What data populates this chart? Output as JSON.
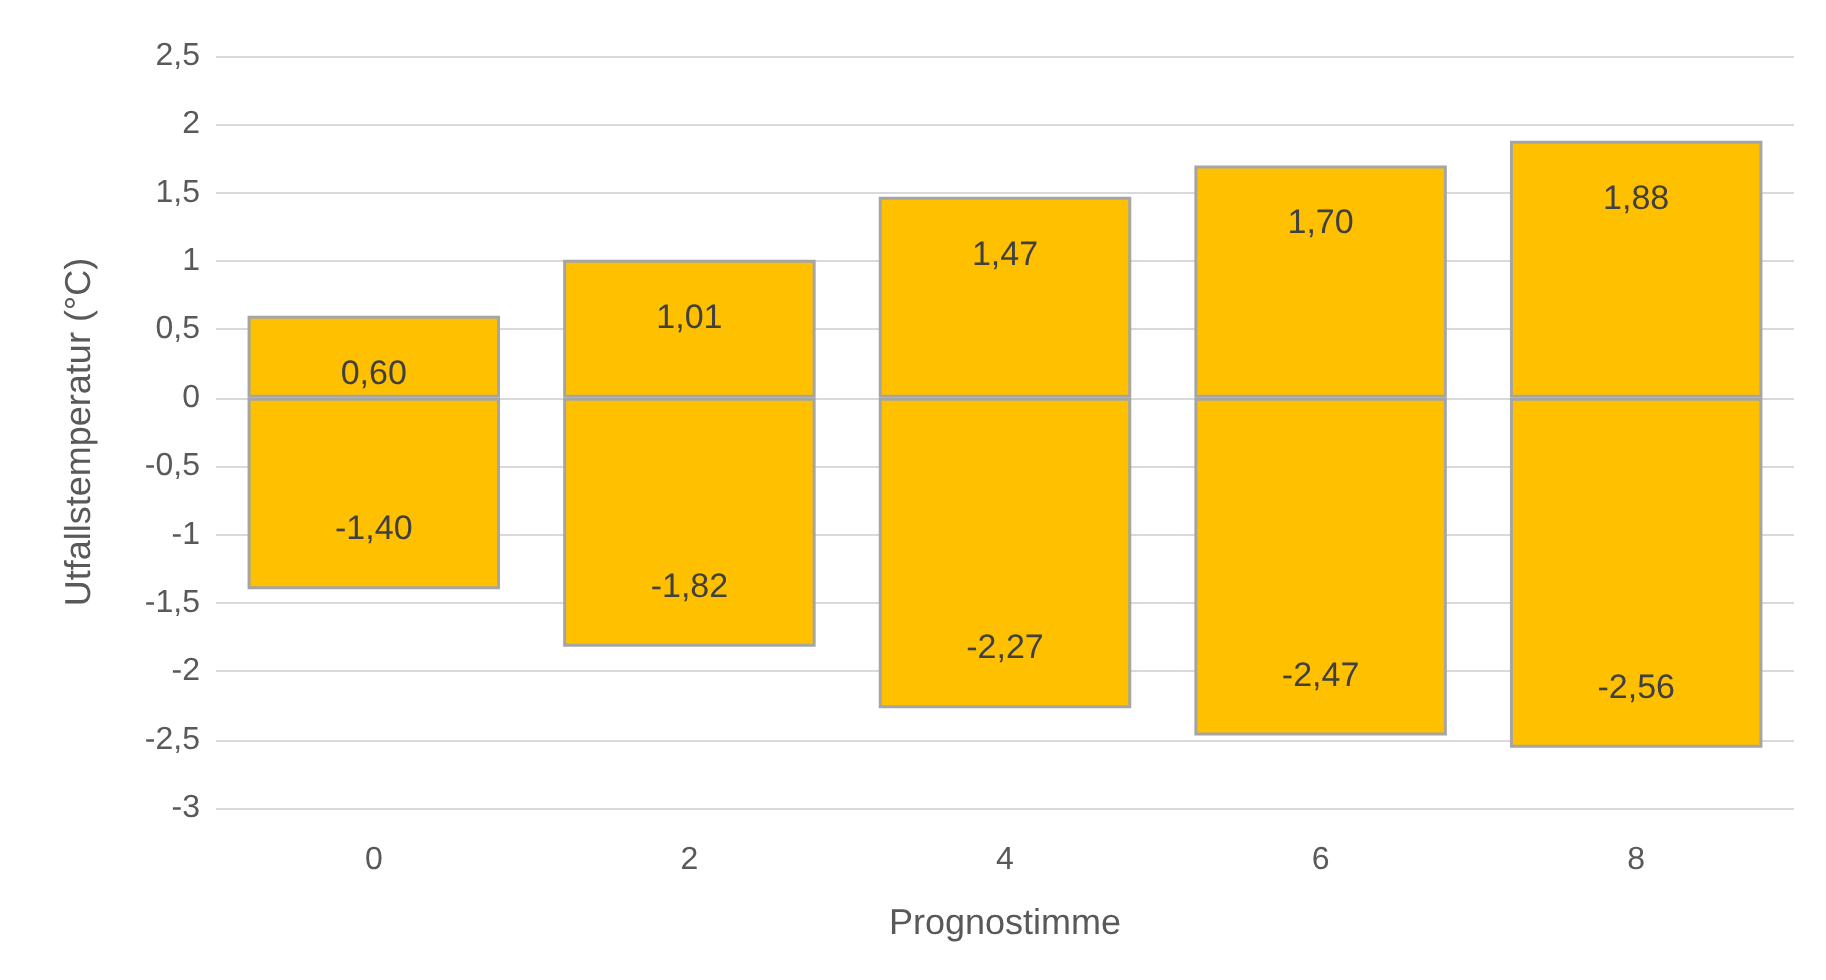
{
  "chart_data": {
    "type": "bar",
    "xlabel": "Prognostimme",
    "ylabel": "Utfallstemperatur (°C)",
    "categories": [
      "0",
      "2",
      "4",
      "6",
      "8"
    ],
    "stacked": true,
    "series": [
      {
        "color": "#ffc000",
        "values": [
          0.6,
          1.01,
          1.47,
          1.7,
          1.88
        ],
        "value_labels": [
          "0,60",
          "1,01",
          "1,47",
          "1,70",
          "1,88"
        ]
      },
      {
        "color": "#ffc000",
        "values": [
          -1.4,
          -1.82,
          -2.27,
          -2.47,
          -2.56
        ],
        "value_labels": [
          "-1,40",
          "-1,82",
          "-2,27",
          "-2,47",
          "-2,56"
        ]
      }
    ],
    "ylim": [
      -3,
      2.5
    ],
    "yticks": [
      -3,
      {
        "value": -2.5,
        "label": "-2,5"
      },
      -2,
      {
        "value": -1.5,
        "label": "-1,5"
      },
      -1,
      {
        "value": -0.5,
        "label": "-0,5"
      },
      0,
      {
        "value": 0.5,
        "label": "0,5"
      },
      1,
      {
        "value": 1.5,
        "label": "1,5"
      },
      2,
      {
        "value": 2.5,
        "label": "2,5"
      }
    ],
    "grid": "y"
  }
}
